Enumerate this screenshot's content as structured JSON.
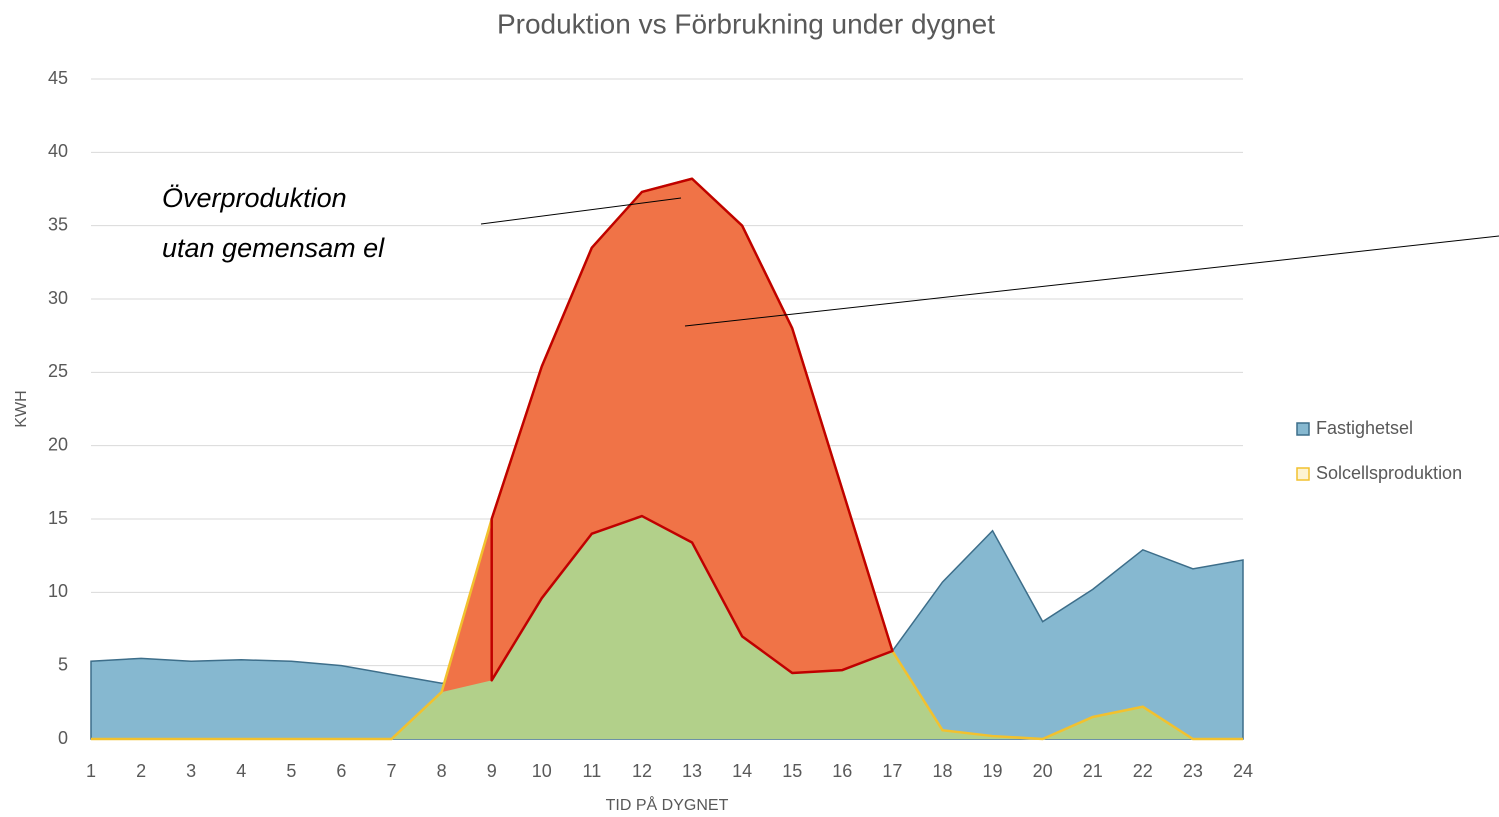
{
  "chart_data": {
    "type": "area",
    "title": "Produktion vs Förbrukning under dygnet",
    "x_label": "TID PÅ DYGNET",
    "y_label": "KWH",
    "categories": [
      "1",
      "2",
      "3",
      "4",
      "5",
      "6",
      "7",
      "8",
      "9",
      "10",
      "11",
      "12",
      "13",
      "14",
      "15",
      "16",
      "17",
      "18",
      "19",
      "20",
      "21",
      "22",
      "23",
      "24"
    ],
    "series": [
      {
        "name": "Fastighetsel",
        "color": "#86b8d0",
        "values": [
          5.3,
          5.5,
          5.3,
          5.4,
          5.3,
          5.0,
          4.4,
          3.8,
          4.0,
          9.6,
          14.0,
          15.2,
          13.4,
          7.0,
          4.5,
          4.7,
          6.0,
          10.7,
          14.2,
          8.0,
          10.2,
          12.9,
          11.6,
          12.2
        ]
      },
      {
        "name": "Solcellsproduktion",
        "color": "#f2c12e",
        "values": [
          0,
          0,
          0,
          0,
          0,
          0,
          0,
          3.2,
          15.0,
          25.4,
          33.5,
          37.3,
          38.2,
          35.0,
          28.0,
          17.0,
          6.0,
          0.6,
          0.2,
          0,
          1.5,
          2.2,
          0,
          0
        ]
      }
    ],
    "ylim": [
      0,
      45
    ],
    "yticks": [
      0,
      5,
      10,
      15,
      20,
      25,
      30,
      35,
      40,
      45
    ],
    "grid": true,
    "legend": "right",
    "annotation": [
      "Överproduktion",
      "utan gemensam el"
    ]
  }
}
